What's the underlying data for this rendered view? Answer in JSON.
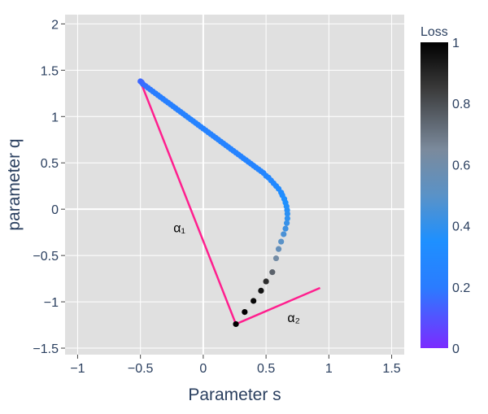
{
  "chart_data": {
    "type": "scatter",
    "xlabel": "Parameter s",
    "ylabel": "parameter q",
    "xlim": [
      -1.1,
      1.6
    ],
    "ylim": [
      -1.57,
      2.1
    ],
    "x_ticks": [
      -1,
      -0.5,
      0,
      0.5,
      1,
      1.5
    ],
    "x_tick_labels": [
      "−1",
      "−0.5",
      "0",
      "0.5",
      "1",
      "1.5"
    ],
    "y_ticks": [
      -1.5,
      -1,
      -0.5,
      0,
      0.5,
      1,
      1.5,
      2
    ],
    "y_tick_labels": [
      "−1.5",
      "−1",
      "−0.5",
      "0",
      "0.5",
      "1",
      "1.5",
      "2"
    ],
    "grid": true,
    "plot_bgcolor": "#e0e0e0",
    "series": [
      {
        "mode": "markers",
        "x": [
          -0.5,
          -0.49,
          -0.48,
          -0.46,
          -0.44,
          -0.42,
          -0.4,
          -0.38,
          -0.36,
          -0.34,
          -0.32,
          -0.3,
          -0.28,
          -0.26,
          -0.24,
          -0.22,
          -0.2,
          -0.18,
          -0.16,
          -0.14,
          -0.12,
          -0.1,
          -0.08,
          -0.06,
          -0.04,
          -0.02,
          0.0,
          0.02,
          0.04,
          0.06,
          0.08,
          0.1,
          0.12,
          0.14,
          0.16,
          0.18,
          0.2,
          0.22,
          0.24,
          0.26,
          0.28,
          0.3,
          0.32,
          0.34,
          0.36,
          0.38,
          0.4,
          0.42,
          0.44,
          0.46,
          0.48,
          0.5,
          0.52,
          0.54,
          0.56,
          0.58,
          0.6,
          0.62,
          0.63,
          0.645,
          0.655,
          0.663,
          0.668,
          0.67,
          0.67,
          0.665,
          0.655,
          0.64,
          0.62,
          0.6,
          0.58,
          0.55,
          0.5,
          0.46,
          0.4,
          0.33,
          0.26
        ],
        "y": [
          1.38,
          1.37,
          1.35,
          1.33,
          1.31,
          1.29,
          1.27,
          1.25,
          1.23,
          1.21,
          1.19,
          1.17,
          1.15,
          1.13,
          1.11,
          1.09,
          1.07,
          1.05,
          1.03,
          1.01,
          0.99,
          0.97,
          0.95,
          0.93,
          0.91,
          0.89,
          0.87,
          0.85,
          0.83,
          0.81,
          0.79,
          0.77,
          0.75,
          0.73,
          0.71,
          0.69,
          0.67,
          0.65,
          0.63,
          0.61,
          0.59,
          0.57,
          0.55,
          0.53,
          0.51,
          0.49,
          0.47,
          0.45,
          0.43,
          0.41,
          0.39,
          0.36,
          0.34,
          0.31,
          0.28,
          0.25,
          0.22,
          0.18,
          0.15,
          0.11,
          0.07,
          0.03,
          -0.01,
          -0.05,
          -0.1,
          -0.15,
          -0.21,
          -0.27,
          -0.35,
          -0.43,
          -0.53,
          -0.68,
          -0.78,
          -0.88,
          -0.99,
          -1.11,
          -1.24
        ],
        "loss": [
          0.15,
          0.15,
          0.16,
          0.17,
          0.18,
          0.19,
          0.2,
          0.21,
          0.21,
          0.22,
          0.22,
          0.23,
          0.23,
          0.23,
          0.24,
          0.24,
          0.24,
          0.24,
          0.24,
          0.25,
          0.25,
          0.25,
          0.25,
          0.25,
          0.25,
          0.25,
          0.25,
          0.25,
          0.25,
          0.25,
          0.25,
          0.25,
          0.25,
          0.25,
          0.25,
          0.25,
          0.25,
          0.25,
          0.25,
          0.25,
          0.25,
          0.25,
          0.26,
          0.26,
          0.26,
          0.26,
          0.26,
          0.27,
          0.27,
          0.27,
          0.27,
          0.28,
          0.28,
          0.29,
          0.29,
          0.3,
          0.31,
          0.32,
          0.33,
          0.34,
          0.35,
          0.36,
          0.37,
          0.38,
          0.39,
          0.41,
          0.43,
          0.46,
          0.5,
          0.55,
          0.62,
          0.75,
          0.88,
          0.95,
          0.98,
          1.0,
          1.0
        ]
      },
      {
        "mode": "lines",
        "color": "#ff1f8e",
        "x": [
          -0.5,
          0.26,
          0.93
        ],
        "y": [
          1.38,
          -1.24,
          -0.85
        ]
      }
    ],
    "annotations": [
      {
        "text": "α₁",
        "x": -0.19,
        "y": -0.25
      },
      {
        "text": "α₂",
        "x": 0.72,
        "y": -1.22
      }
    ],
    "colorbar": {
      "title": "Loss",
      "range": [
        0,
        1
      ],
      "ticks": [
        0,
        0.2,
        0.4,
        0.6,
        0.8,
        1
      ],
      "tick_labels": [
        "0",
        "0.2",
        "0.4",
        "0.6",
        "0.8",
        "1"
      ],
      "colorscale": [
        [
          0.0,
          "#7b2bff"
        ],
        [
          0.2,
          "#2a7cff"
        ],
        [
          0.35,
          "#1e90ff"
        ],
        [
          0.5,
          "#5a92c7"
        ],
        [
          0.65,
          "#7b8a9c"
        ],
        [
          0.85,
          "#3a3a3a"
        ],
        [
          1.0,
          "#000000"
        ]
      ]
    }
  }
}
